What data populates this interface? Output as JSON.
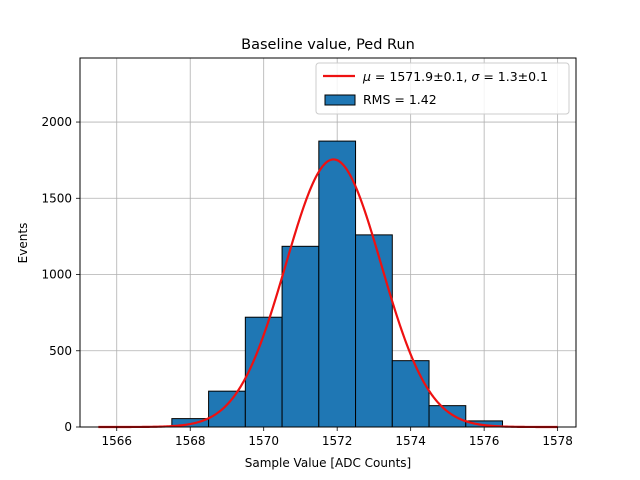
{
  "chart_data": {
    "type": "bar",
    "title": "Baseline value, Ped Run",
    "xlabel": "Sample Value [ADC Counts]",
    "ylabel": "Events",
    "xlim": [
      1565,
      1578.5
    ],
    "ylim": [
      0,
      2420
    ],
    "xticks": [
      1566,
      1568,
      1570,
      1572,
      1574,
      1576,
      1578
    ],
    "yticks": [
      0,
      500,
      1000,
      1500,
      2000
    ],
    "grid": true,
    "legend_position": "top-right",
    "histogram": {
      "name": "RMS = 1.42",
      "bin_width": 1,
      "bin_edges": [
        1567.5,
        1568.5,
        1569.5,
        1570.5,
        1571.5,
        1572.5,
        1573.5,
        1574.5,
        1575.5,
        1576.5
      ],
      "counts": [
        55,
        235,
        720,
        1185,
        1875,
        1260,
        435,
        140,
        40
      ],
      "fill_color": "#1f77b4",
      "edge_color": "#000000"
    },
    "fit": {
      "name_mu_symbol": "μ",
      "name_mu_value": " = 1571.9±0.1, ",
      "name_sigma_symbol": "σ",
      "name_sigma_value": " = 1.3±0.1",
      "type": "gaussian",
      "mu": 1571.9,
      "sigma": 1.3,
      "amplitude": 1755,
      "x_range": [
        1565.5,
        1578
      ],
      "color": "#ee1111"
    }
  }
}
